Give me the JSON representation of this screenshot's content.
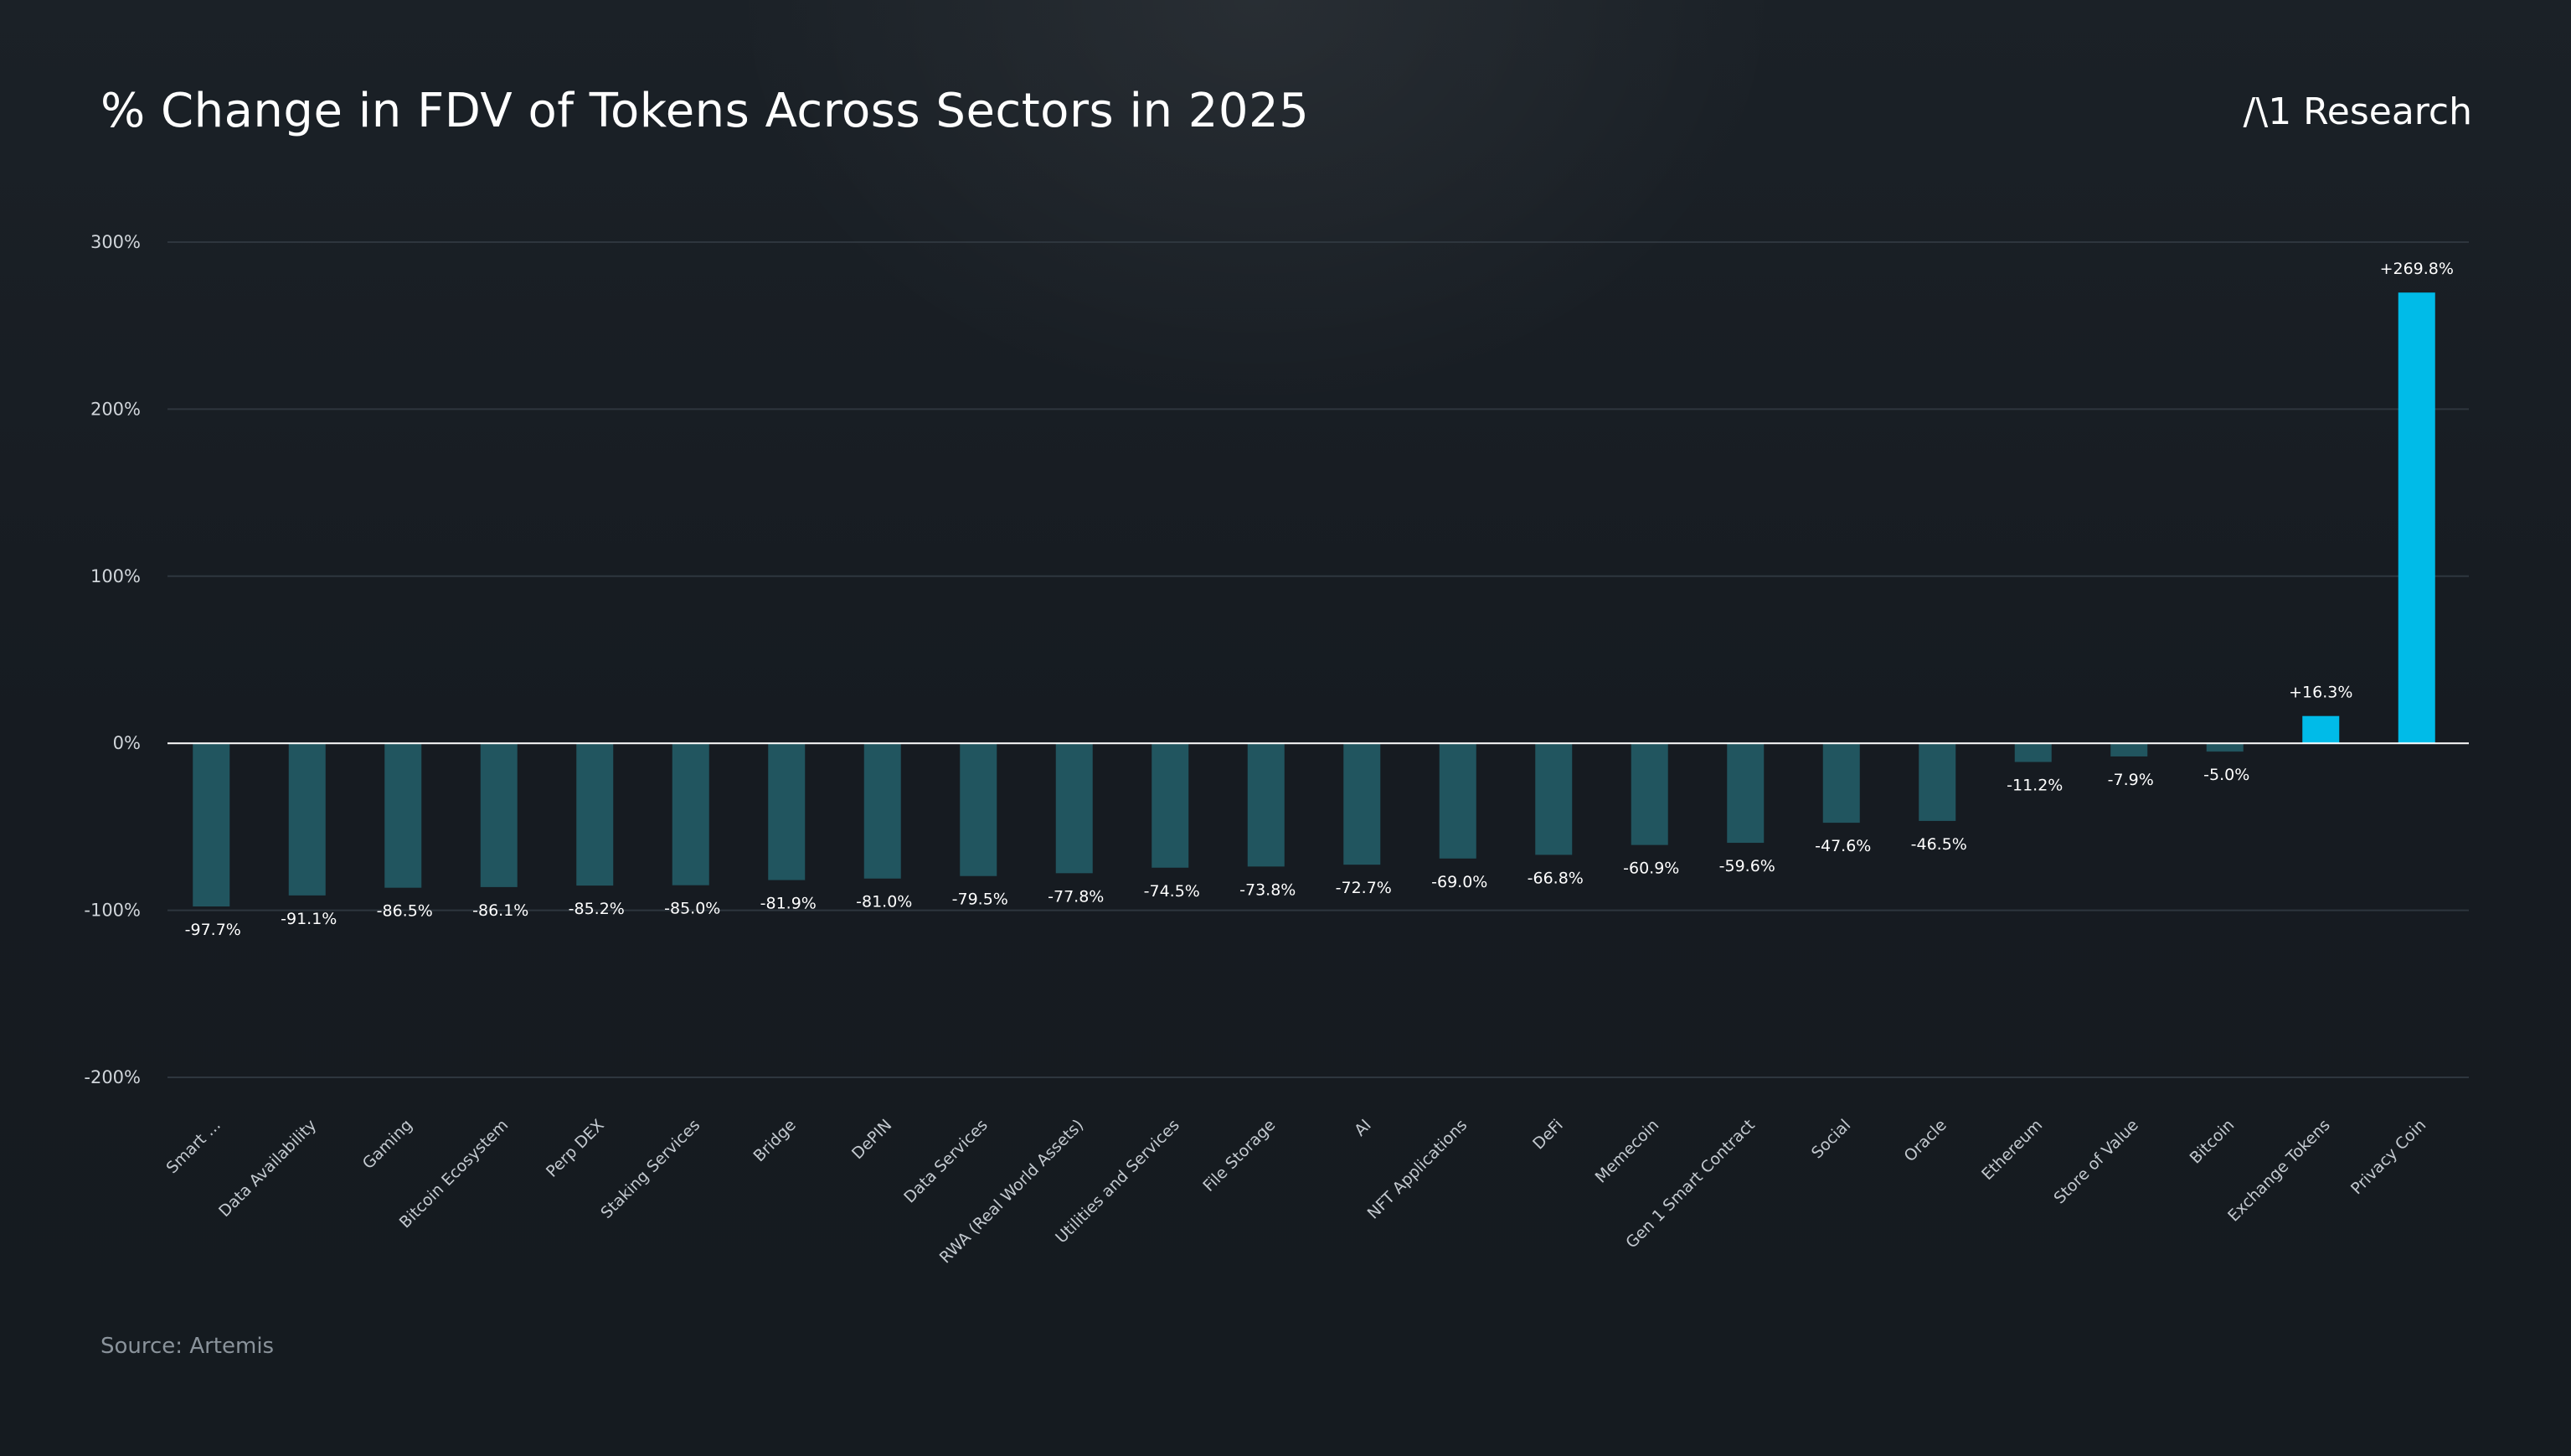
{
  "header": {
    "title": "% Change in FDV of Tokens Across Sectors in 2025",
    "brand": "/\\1 Research"
  },
  "footer": {
    "source": "Source: Artemis"
  },
  "colors": {
    "background": "#161c22",
    "negative_bar": "#21555f",
    "positive_bar": "#00bbe8",
    "gridline": "#2e363e",
    "zero_line": "#ffffff",
    "tick_label": "#d0d5da",
    "category_label": "#c4cad0",
    "data_label": "#ffffff"
  },
  "chart_data": {
    "type": "bar",
    "title": "% Change in FDV of Tokens Across Sectors in 2025",
    "xlabel": "",
    "ylabel": "",
    "ylim": [
      -200,
      300
    ],
    "yticks": [
      300,
      200,
      100,
      0,
      -100,
      -200
    ],
    "ytick_labels": [
      "300%",
      "200%",
      "100%",
      "0%",
      "-100%",
      "-200%"
    ],
    "grid": true,
    "categories": [
      "Smart ...",
      "Data Availability",
      "Gaming",
      "Bitcoin Ecosystem",
      "Perp DEX",
      "Staking Services",
      "Bridge",
      "DePIN",
      "Data Services",
      "RWA (Real World Assets)",
      "Utilities and Services",
      "File Storage",
      "AI",
      "NFT Applications",
      "DeFi",
      "Memecoin",
      "Gen 1 Smart Contract",
      "Social",
      "Oracle",
      "Ethereum",
      "Store of Value",
      "Bitcoin",
      "Exchange Tokens",
      "Privacy Coin"
    ],
    "values": [
      -97.7,
      -91.1,
      -86.5,
      -86.1,
      -85.2,
      -85.0,
      -81.9,
      -81.0,
      -79.5,
      -77.8,
      -74.5,
      -73.8,
      -72.7,
      -69.0,
      -66.8,
      -60.9,
      -59.6,
      -47.6,
      -46.5,
      -11.2,
      -7.9,
      -5.0,
      16.3,
      269.8
    ],
    "data_labels": [
      "-97.7%",
      "-91.1%",
      "-86.5%",
      "-86.1%",
      "-85.2%",
      "-85.0%",
      "-81.9%",
      "-81.0%",
      "-79.5%",
      "-77.8%",
      "-74.5%",
      "-73.8%",
      "-72.7%",
      "-69.0%",
      "-66.8%",
      "-60.9%",
      "-59.6%",
      "-47.6%",
      "-46.5%",
      "-11.2%",
      "-7.9%",
      "-5.0%",
      "+16.3%",
      "+269.8%"
    ]
  }
}
